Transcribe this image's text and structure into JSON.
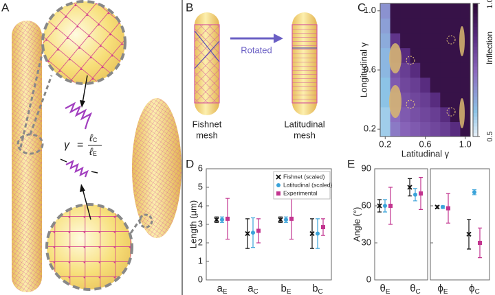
{
  "panel_labels": [
    "A",
    "B",
    "C",
    "D",
    "E"
  ],
  "panel_a": {
    "equation": {
      "lhs": "γ",
      "rel": "=",
      "num": {
        "main": "ℓ",
        "sub": "C"
      },
      "den": {
        "main": "ℓ",
        "sub": "E"
      }
    }
  },
  "panel_b": {
    "left_label": [
      "Fishnet",
      "mesh"
    ],
    "arrow_label": "Rotated",
    "right_label": [
      "Latitudinal",
      "mesh"
    ]
  },
  "chart_data": [
    {
      "type": "heatmap",
      "xlabel": "Latitudinal γ",
      "ylabel": "Longitudinal γ",
      "x": [
        0.2,
        0.3,
        0.4,
        0.5,
        0.6,
        0.7,
        0.8,
        0.9,
        1.0
      ],
      "y": [
        0.2,
        0.3,
        0.4,
        0.5,
        0.6,
        0.7,
        0.8,
        0.9,
        1.0
      ],
      "values": [
        [
          0.58,
          0.72,
          0.76,
          0.78,
          0.8,
          0.82,
          0.84,
          0.88,
          0.97
        ],
        [
          0.58,
          0.74,
          0.78,
          0.8,
          0.82,
          0.84,
          0.88,
          0.97,
          0.97
        ],
        [
          0.6,
          0.76,
          0.8,
          0.82,
          0.84,
          0.88,
          0.97,
          0.97,
          0.97
        ],
        [
          0.6,
          0.78,
          0.82,
          0.84,
          0.88,
          0.97,
          0.97,
          0.97,
          0.97
        ],
        [
          0.62,
          0.8,
          0.84,
          0.88,
          0.97,
          0.97,
          0.97,
          0.97,
          0.97
        ],
        [
          0.62,
          0.82,
          0.88,
          0.97,
          0.97,
          0.97,
          0.97,
          0.97,
          0.97
        ],
        [
          0.64,
          0.86,
          0.97,
          0.97,
          0.97,
          0.97,
          0.97,
          0.97,
          0.97
        ],
        [
          0.66,
          0.97,
          0.97,
          0.97,
          0.97,
          0.97,
          0.97,
          0.97,
          0.97
        ],
        [
          0.68,
          0.97,
          0.97,
          0.97,
          0.97,
          0.97,
          0.97,
          0.97,
          0.97
        ]
      ],
      "xlim": [
        0.15,
        1.05
      ],
      "ylim": [
        0.15,
        1.05
      ],
      "xticks": [
        0.2,
        0.6,
        {
          "value": 1,
          "label": "1.0"
        }
      ],
      "yticks": [
        0.2,
        0.6,
        {
          "value": 1,
          "label": "1.0"
        }
      ],
      "colorbar": {
        "label": "Inflection",
        "lim": [
          0.5,
          1
        ],
        "ticks": [
          0.5,
          {
            "value": 1,
            "label": "1.0"
          }
        ]
      }
    },
    {
      "type": "errorbar",
      "ylabel": "Length (μm)",
      "categories": [
        {
          "main": "a",
          "sub": "E"
        },
        {
          "main": "a",
          "sub": "C"
        },
        {
          "main": "b",
          "sub": "E"
        },
        {
          "main": "b",
          "sub": "C"
        }
      ],
      "ylim": [
        0,
        6
      ],
      "yticks": [
        0,
        1,
        2,
        3,
        4,
        5,
        6
      ],
      "legend": "upper right",
      "series": [
        {
          "name": "Fishnet (scaled)",
          "color": "#111111",
          "marker": "x",
          "values": [
            3.25,
            2.5,
            3.25,
            2.5
          ],
          "errors": [
            0.15,
            0.8,
            0.15,
            0.8
          ]
        },
        {
          "name": "Latitudinal (scaled)",
          "color": "#3ba3d9",
          "marker": "circle",
          "values": [
            3.25,
            2.55,
            3.25,
            2.5
          ],
          "errors": [
            0.15,
            0.8,
            0.15,
            0.8
          ]
        },
        {
          "name": "Experimental",
          "color": "#c2348f",
          "marker": "square",
          "values": [
            3.3,
            2.65,
            3.3,
            2.85
          ],
          "errors": [
            1.1,
            0.65,
            1.1,
            0.45
          ]
        }
      ]
    },
    {
      "type": "errorbar",
      "ylabel": "Angle (°)",
      "categories": [
        {
          "main": "θ",
          "sub": "E"
        },
        {
          "main": "θ",
          "sub": "C"
        },
        {
          "main": "ϕ",
          "sub": "E"
        },
        {
          "main": "ϕ",
          "sub": "C"
        }
      ],
      "ylim": [
        0,
        90
      ],
      "yticks": [
        0,
        30,
        60,
        90
      ],
      "series": [
        {
          "name": "Fishnet (scaled)",
          "color": "#111111",
          "marker": "x",
          "values": [
            60,
            75,
            59,
            37
          ],
          "errors": [
            5,
            7,
            1,
            12
          ]
        },
        {
          "name": "Latitudinal (scaled)",
          "color": "#3ba3d9",
          "marker": "circle",
          "values": [
            60,
            69,
            59,
            71
          ],
          "errors": [
            5,
            5,
            1,
            2
          ]
        },
        {
          "name": "Experimental",
          "color": "#c2348f",
          "marker": "square",
          "values": [
            60,
            70,
            58,
            30
          ],
          "errors": [
            15,
            13,
            12,
            12
          ]
        }
      ]
    }
  ]
}
